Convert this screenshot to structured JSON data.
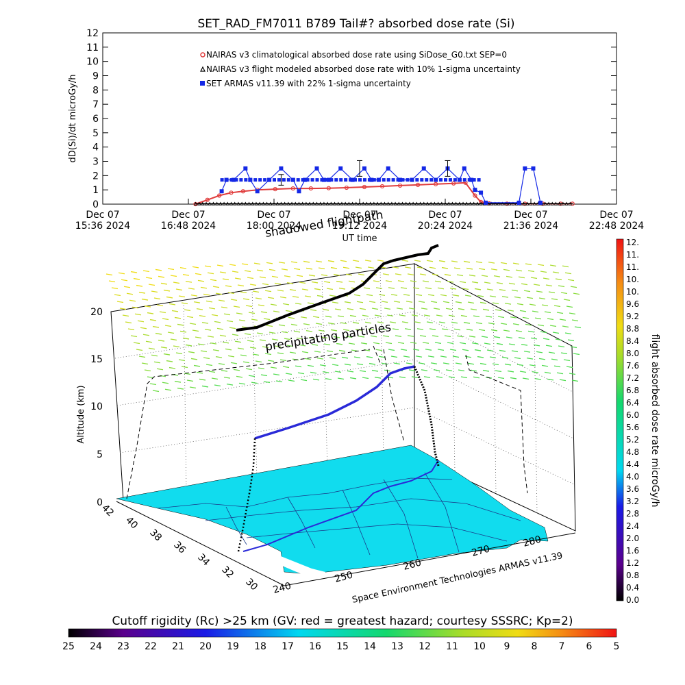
{
  "chart_data": [
    {
      "type": "line",
      "title": "SET_RAD_FM7011  B789 Tail#? absorbed dose rate (Si)",
      "ylabel": "dD(Si)/dt microGy/h",
      "xlabel": "UT time",
      "ylim": [
        0,
        12
      ],
      "y_ticks": [
        "0",
        "1",
        "2",
        "3",
        "4",
        "5",
        "6",
        "7",
        "8",
        "9",
        "10",
        "11",
        "12"
      ],
      "x_range_minutes": [
        0,
        432
      ],
      "x_ticks": [
        {
          "date": "Dec 07",
          "time": "15:36 2024",
          "t": 0
        },
        {
          "date": "Dec 07",
          "time": "16:48 2024",
          "t": 72
        },
        {
          "date": "Dec 07",
          "time": "18:00 2024",
          "t": 144
        },
        {
          "date": "Dec 07",
          "time": "19:12 2024",
          "t": 216
        },
        {
          "date": "Dec 07",
          "time": "20:24 2024",
          "t": 288
        },
        {
          "date": "Dec 07",
          "time": "21:36 2024",
          "t": 360
        },
        {
          "date": "Dec 07",
          "time": "22:48 2024",
          "t": 432
        }
      ],
      "legend_placement": "top-left",
      "series": [
        {
          "name": "NAIRAS v3 climatological absorbed dose rate using SiDose_G0.txt SEP=0",
          "color": "#e03c3c",
          "marker": "circle",
          "x": [
            78,
            88,
            98,
            108,
            118,
            130,
            145,
            160,
            175,
            190,
            205,
            220,
            235,
            250,
            265,
            280,
            295,
            305,
            313,
            318,
            325,
            340,
            355,
            370,
            385,
            395
          ],
          "y": [
            0.0,
            0.3,
            0.6,
            0.8,
            0.9,
            1.0,
            1.05,
            1.1,
            1.1,
            1.12,
            1.15,
            1.2,
            1.25,
            1.3,
            1.35,
            1.4,
            1.45,
            1.5,
            0.6,
            0.15,
            0.05,
            0.03,
            0.03,
            0.03,
            0.03,
            0.03
          ]
        },
        {
          "name": "NAIRAS v3 flight modeled absorbed dose rate with 10% 1-sigma uncertainty",
          "color": "#000000",
          "marker": "triangle",
          "x": [
            78,
            395
          ],
          "y": [
            0.03,
            0.03
          ]
        },
        {
          "name": "SET ARMAS v11.39 with 22% 1-sigma uncertainty",
          "color": "#1428e6",
          "marker": "square",
          "x": [
            100,
            104,
            110,
            120,
            124,
            130,
            140,
            150,
            160,
            165,
            170,
            180,
            186,
            190,
            200,
            210,
            220,
            226,
            232,
            240,
            250,
            260,
            270,
            280,
            290,
            300,
            304,
            310,
            313,
            318,
            322,
            350,
            355,
            362,
            368
          ],
          "y": [
            0.9,
            1.7,
            1.7,
            2.5,
            1.7,
            0.9,
            1.7,
            2.5,
            1.7,
            0.9,
            1.7,
            2.5,
            1.7,
            1.7,
            2.5,
            1.7,
            2.5,
            1.7,
            1.7,
            2.5,
            1.7,
            1.7,
            2.5,
            1.7,
            2.5,
            1.7,
            2.5,
            1.7,
            1.0,
            0.8,
            0.1,
            0.1,
            2.5,
            2.5,
            0.1
          ]
        }
      ]
    },
    {
      "type": "3d-trajectory",
      "zlabel": "Altitude (km)",
      "z_ticks": [
        "0",
        "5",
        "10",
        "15",
        "20"
      ],
      "lat_ticks": [
        "42",
        "40",
        "38",
        "36",
        "34",
        "32",
        "30"
      ],
      "lon_ticks": [
        "240",
        "250",
        "260",
        "270",
        "280"
      ],
      "annotations": [
        "precipitating particles",
        "shadowed flightpath",
        "Space Environment Technologies ARMAS v11.39"
      ],
      "colorbar": {
        "label": "flight absorbed dose rate microGy/h",
        "ticks": [
          "12.",
          "11.",
          "11.",
          "10.",
          "10.",
          "9.6",
          "9.2",
          "8.8",
          "8.4",
          "8.0",
          "7.6",
          "7.2",
          "6.8",
          "6.4",
          "6.0",
          "5.6",
          "5.2",
          "4.8",
          "4.4",
          "4.0",
          "3.6",
          "3.2",
          "2.8",
          "2.4",
          "2.0",
          "1.6",
          "1.2",
          "0.8",
          "0.4",
          "0.0"
        ]
      }
    },
    {
      "type": "colorbar",
      "title": "Cutoff rigidity (Rc) >25 km (GV: red = greatest hazard; courtesy SSSRC; Kp=2)",
      "ticks": [
        "25",
        "24",
        "23",
        "22",
        "21",
        "20",
        "19",
        "18",
        "17",
        "16",
        "15",
        "14",
        "13",
        "12",
        "11",
        "10",
        "9",
        "8",
        "7",
        "6",
        "5"
      ]
    }
  ],
  "colors": {
    "map_fill": "#11dcee",
    "map_hole": "#ffffff",
    "flight_path_blue": "#2a2ad8",
    "shadow_black": "#000000"
  }
}
